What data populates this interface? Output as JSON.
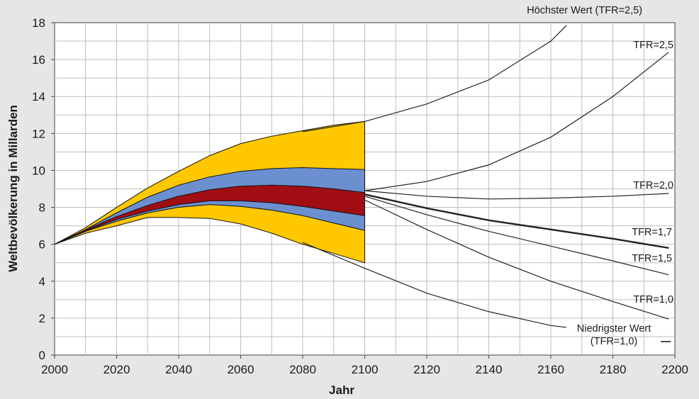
{
  "chart_data": {
    "type": "line",
    "title": "",
    "xlabel": "Jahr",
    "ylabel": "Weltbevölkerung  in Millarden",
    "xlim": [
      2000,
      2200
    ],
    "ylim": [
      0,
      18
    ],
    "xticks": [
      2000,
      2020,
      2040,
      2060,
      2080,
      2100,
      2120,
      2140,
      2160,
      2180,
      2200
    ],
    "yticks": [
      0,
      2,
      4,
      6,
      8,
      10,
      12,
      14,
      16,
      18
    ],
    "grid": true,
    "colors": {
      "outer_band": "#ffc800",
      "middle_band": "#6b8fcf",
      "inner_band": "#a00e14",
      "lines": "#222222",
      "grid": "#bdbdbd"
    },
    "bands": [
      {
        "id": "outer",
        "color_key": "outer_band",
        "x": [
          2000,
          2010,
          2020,
          2030,
          2040,
          2050,
          2060,
          2070,
          2080,
          2090,
          2100
        ],
        "upper": [
          6.0,
          6.9,
          8.0,
          9.05,
          9.95,
          10.8,
          11.45,
          11.85,
          12.15,
          12.45,
          12.65
        ],
        "lower": [
          6.0,
          6.6,
          7.0,
          7.45,
          7.45,
          7.4,
          7.1,
          6.6,
          6.0,
          5.5,
          5.0
        ]
      },
      {
        "id": "middle",
        "color_key": "middle_band",
        "x": [
          2000,
          2010,
          2020,
          2030,
          2040,
          2050,
          2060,
          2070,
          2080,
          2090,
          2100
        ],
        "upper": [
          6.0,
          6.8,
          7.7,
          8.55,
          9.2,
          9.65,
          9.95,
          10.1,
          10.15,
          10.1,
          10.05
        ],
        "lower": [
          6.0,
          6.7,
          7.25,
          7.7,
          8.0,
          8.15,
          8.05,
          7.85,
          7.55,
          7.15,
          6.75
        ]
      },
      {
        "id": "inner",
        "color_key": "inner_band",
        "x": [
          2000,
          2010,
          2020,
          2030,
          2040,
          2050,
          2060,
          2070,
          2080,
          2090,
          2100
        ],
        "upper": [
          6.0,
          6.78,
          7.5,
          8.1,
          8.6,
          8.95,
          9.15,
          9.2,
          9.15,
          9.0,
          8.8
        ],
        "lower": [
          6.0,
          6.72,
          7.35,
          7.8,
          8.15,
          8.35,
          8.35,
          8.25,
          8.05,
          7.8,
          7.55
        ]
      }
    ],
    "series": [
      {
        "name": "Höchster Wert (TFR=2,5)",
        "x": [
          2080,
          2100,
          2120,
          2140,
          2160,
          2165
        ],
        "y": [
          12.1,
          12.65,
          13.6,
          14.9,
          17.0,
          17.85
        ]
      },
      {
        "name": "TFR=2,5",
        "x": [
          2100,
          2120,
          2140,
          2160,
          2180,
          2198
        ],
        "y": [
          8.9,
          9.4,
          10.3,
          11.8,
          14.0,
          16.4
        ]
      },
      {
        "name": "TFR=2,0",
        "x": [
          2100,
          2120,
          2140,
          2160,
          2180,
          2198
        ],
        "y": [
          8.9,
          8.6,
          8.45,
          8.5,
          8.6,
          8.75
        ]
      },
      {
        "name": "TFR=1,7",
        "x": [
          2100,
          2120,
          2140,
          2160,
          2180,
          2198
        ],
        "y": [
          8.7,
          7.95,
          7.3,
          6.8,
          6.3,
          5.8
        ]
      },
      {
        "name": "TFR=1,5",
        "x": [
          2100,
          2120,
          2140,
          2160,
          2180,
          2198
        ],
        "y": [
          8.6,
          7.6,
          6.7,
          5.9,
          5.1,
          4.35
        ]
      },
      {
        "name": "TFR=1,0",
        "x": [
          2100,
          2120,
          2140,
          2160,
          2180,
          2198
        ],
        "y": [
          8.4,
          6.8,
          5.3,
          4.0,
          2.9,
          1.95
        ]
      },
      {
        "name": "Niedrigster Wert (TFR=1,0)",
        "x": [
          2080,
          2100,
          2120,
          2140,
          2160,
          2165
        ],
        "y": [
          6.1,
          4.7,
          3.35,
          2.35,
          1.6,
          1.5
        ]
      }
    ],
    "annotations": [
      {
        "id": "hoechster",
        "text": "Höchster Wert (TFR=2,5)"
      },
      {
        "id": "tfr25",
        "text": "TFR=2,5"
      },
      {
        "id": "tfr20",
        "text": "TFR=2,0"
      },
      {
        "id": "tfr17",
        "text": "TFR=1,7"
      },
      {
        "id": "tfr15",
        "text": "TFR=1,5"
      },
      {
        "id": "tfr10",
        "text": "TFR=1,0"
      },
      {
        "id": "niedrigster_1",
        "text": "Niedrigster Wert"
      },
      {
        "id": "niedrigster_2",
        "text": "(TFR=1,0)"
      }
    ]
  }
}
